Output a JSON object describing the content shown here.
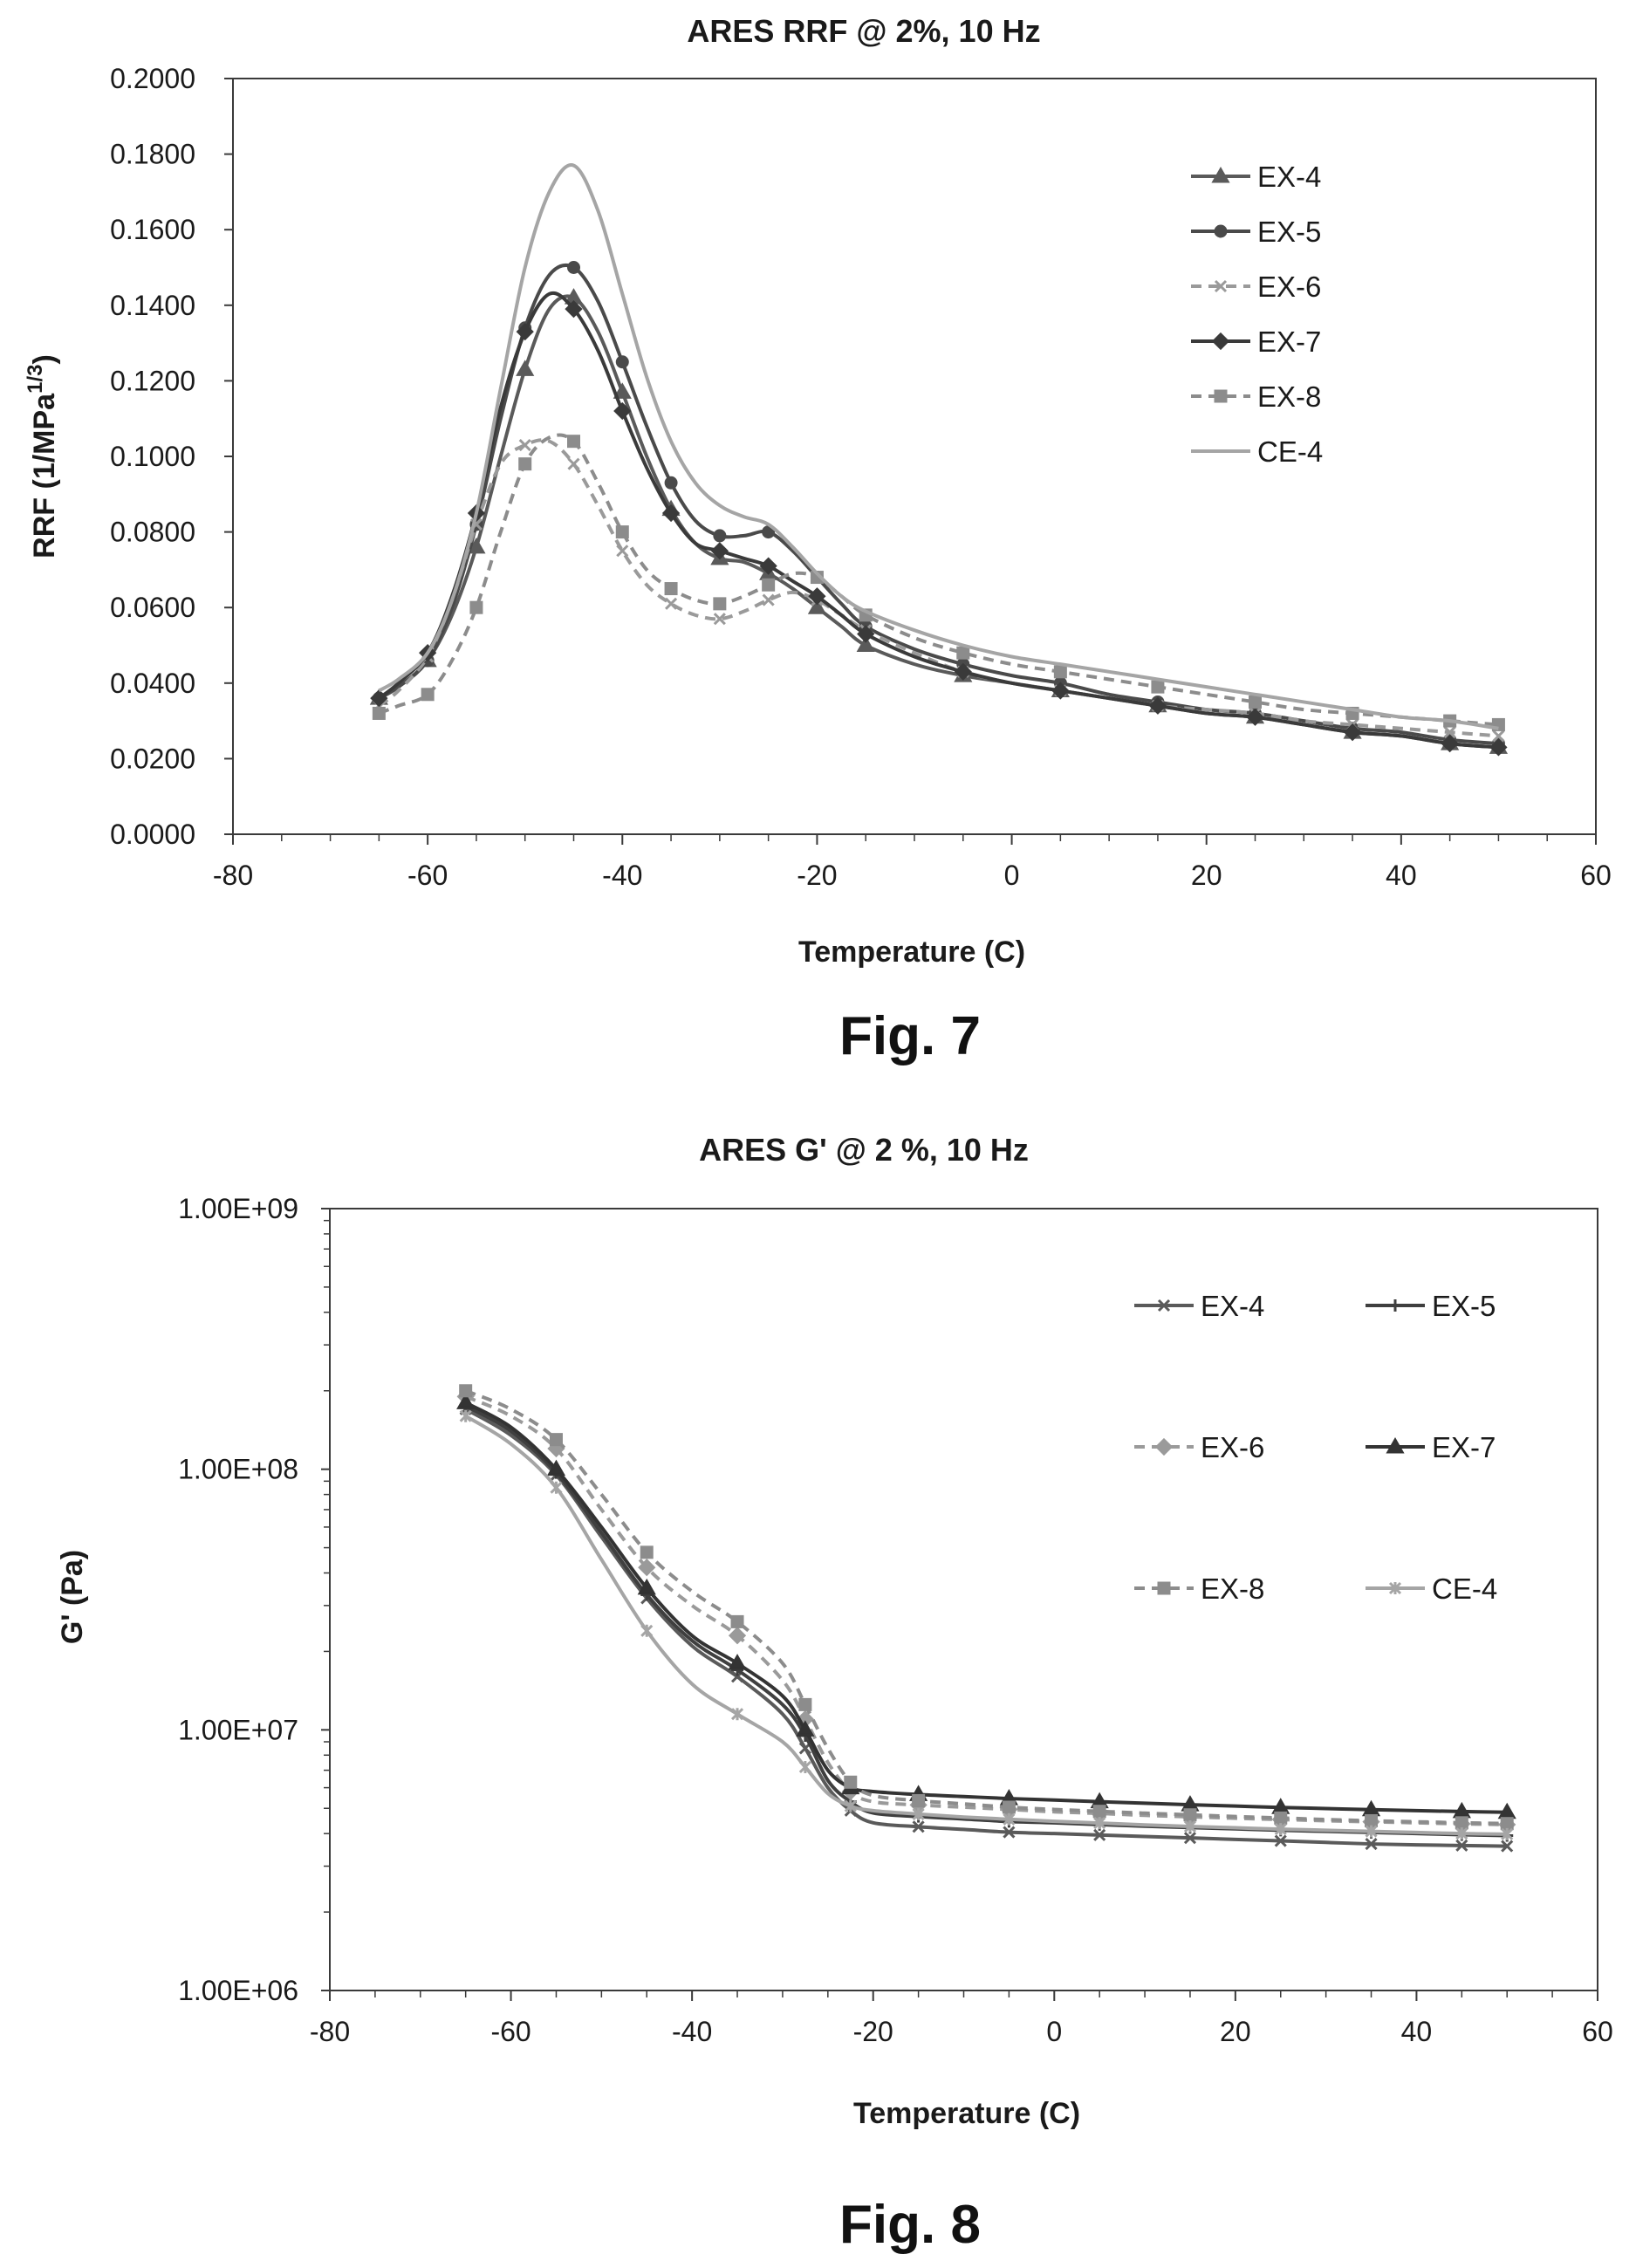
{
  "captions": [
    "Fig. 7",
    "Fig. 8"
  ],
  "chart_data": [
    {
      "type": "line",
      "title": "ARES RRF @ 2%, 10 Hz",
      "xlabel": "Temperature (C)",
      "ylabel": "RRF (1/MPa1/3)",
      "ylabel_main": "RRF (1/MPa",
      "ylabel_sup": "1/3",
      "ylabel_end": ")",
      "xlim": [
        -80,
        60
      ],
      "ylim": [
        0,
        0.2
      ],
      "xticks": [
        -80,
        -60,
        -40,
        -20,
        0,
        20,
        40,
        60
      ],
      "xtick_labels": [
        "-80",
        "-60",
        "-40",
        "-20",
        "0",
        "20",
        "40",
        "60"
      ],
      "yticks": [
        0,
        0.02,
        0.04,
        0.06,
        0.08,
        0.1,
        0.12,
        0.14,
        0.16,
        0.18,
        0.2
      ],
      "ytick_labels": [
        "0.0000",
        "0.0200",
        "0.0400",
        "0.0600",
        "0.0800",
        "0.1000",
        "0.1200",
        "0.1400",
        "0.1600",
        "0.1800",
        "0.2000"
      ],
      "x": [
        -65,
        -63,
        -60,
        -57.5,
        -55,
        -52.5,
        -50,
        -47.5,
        -45,
        -42.5,
        -40,
        -37.5,
        -35,
        -32.5,
        -30,
        -27.5,
        -25,
        -22.5,
        -20,
        -17.5,
        -15,
        -10,
        -5,
        0,
        5,
        10,
        15,
        20,
        25,
        30,
        35,
        40,
        45,
        50
      ],
      "series": [
        {
          "name": "EX-4",
          "color": "#5a5a5a",
          "dash": "",
          "marker": "triangle",
          "values": [
            0.036,
            0.039,
            0.046,
            0.058,
            0.076,
            0.1,
            0.123,
            0.139,
            0.142,
            0.133,
            0.117,
            0.1,
            0.086,
            0.077,
            0.073,
            0.072,
            0.069,
            0.065,
            0.06,
            0.055,
            0.05,
            0.045,
            0.042,
            0.04,
            0.038,
            0.036,
            0.034,
            0.032,
            0.031,
            0.029,
            0.027,
            0.026,
            0.024,
            0.023
          ]
        },
        {
          "name": "EX-5",
          "color": "#4a4a4a",
          "dash": "",
          "marker": "circle",
          "values": [
            0.036,
            0.039,
            0.046,
            0.06,
            0.082,
            0.11,
            0.134,
            0.148,
            0.15,
            0.141,
            0.125,
            0.108,
            0.093,
            0.083,
            0.079,
            0.079,
            0.08,
            0.075,
            0.068,
            0.061,
            0.055,
            0.049,
            0.045,
            0.042,
            0.04,
            0.037,
            0.035,
            0.033,
            0.032,
            0.03,
            0.028,
            0.027,
            0.025,
            0.024
          ]
        },
        {
          "name": "EX-6",
          "color": "#9a9a9a",
          "dash": "12,8",
          "marker": "x",
          "values": [
            0.034,
            0.038,
            0.047,
            0.062,
            0.082,
            0.098,
            0.103,
            0.104,
            0.098,
            0.087,
            0.075,
            0.066,
            0.061,
            0.058,
            0.057,
            0.059,
            0.062,
            0.064,
            0.062,
            0.058,
            0.054,
            0.048,
            0.043,
            0.04,
            0.038,
            0.036,
            0.034,
            0.033,
            0.032,
            0.03,
            0.029,
            0.028,
            0.027,
            0.026
          ]
        },
        {
          "name": "EX-7",
          "color": "#3a3a3a",
          "dash": "",
          "marker": "diamond",
          "values": [
            0.036,
            0.04,
            0.048,
            0.063,
            0.085,
            0.113,
            0.133,
            0.143,
            0.139,
            0.128,
            0.112,
            0.097,
            0.085,
            0.077,
            0.075,
            0.073,
            0.071,
            0.067,
            0.063,
            0.058,
            0.053,
            0.047,
            0.043,
            0.04,
            0.038,
            0.036,
            0.034,
            0.032,
            0.031,
            0.029,
            0.027,
            0.026,
            0.024,
            0.023
          ]
        },
        {
          "name": "EX-8",
          "color": "#8c8c8c",
          "dash": "12,8",
          "marker": "square",
          "values": [
            0.032,
            0.034,
            0.037,
            0.046,
            0.06,
            0.08,
            0.098,
            0.105,
            0.104,
            0.093,
            0.08,
            0.07,
            0.065,
            0.062,
            0.061,
            0.063,
            0.066,
            0.069,
            0.068,
            0.063,
            0.058,
            0.052,
            0.048,
            0.045,
            0.043,
            0.041,
            0.039,
            0.037,
            0.035,
            0.033,
            0.032,
            0.031,
            0.03,
            0.029
          ]
        },
        {
          "name": "CE-4",
          "color": "#a5a5a5",
          "dash": "",
          "marker": "none",
          "values": [
            0.038,
            0.041,
            0.048,
            0.062,
            0.085,
            0.118,
            0.15,
            0.17,
            0.177,
            0.165,
            0.143,
            0.121,
            0.104,
            0.093,
            0.087,
            0.084,
            0.082,
            0.076,
            0.069,
            0.063,
            0.059,
            0.054,
            0.05,
            0.047,
            0.045,
            0.043,
            0.041,
            0.039,
            0.037,
            0.035,
            0.033,
            0.031,
            0.03,
            0.028
          ]
        }
      ],
      "legend_position": "top-right",
      "grid": false
    },
    {
      "type": "line",
      "title": "ARES G' @ 2 %, 10 Hz",
      "xlabel": "Temperature (C)",
      "ylabel": "G' (Pa)",
      "yscale": "log",
      "xlim": [
        -80,
        60
      ],
      "ylim": [
        1000000,
        1000000000
      ],
      "xticks": [
        -80,
        -60,
        -40,
        -20,
        0,
        20,
        40,
        60
      ],
      "xtick_labels": [
        "-80",
        "-60",
        "-40",
        "-20",
        "0",
        "20",
        "40",
        "60"
      ],
      "yticks": [
        1000000,
        10000000,
        100000000,
        1000000000
      ],
      "ytick_labels": [
        "1.00E+06",
        "1.00E+07",
        "1.00E+08",
        "1.00E+09"
      ],
      "x": [
        -65,
        -60,
        -55,
        -50,
        -45,
        -40,
        -35,
        -30,
        -27.5,
        -25,
        -22.5,
        -20,
        -15,
        -10,
        -5,
        0,
        5,
        10,
        15,
        20,
        25,
        30,
        35,
        40,
        45,
        50
      ],
      "series": [
        {
          "name": "EX-4",
          "color": "#5a5a5a",
          "dash": "",
          "marker": "x",
          "values": [
            170000000,
            135000000,
            95000000,
            55000000,
            32000000,
            21000000,
            16000000,
            11500000,
            8500000,
            6000000,
            4900000,
            4400000,
            4250000,
            4150000,
            4050000,
            4000000,
            3950000,
            3900000,
            3850000,
            3800000,
            3750000,
            3700000,
            3650000,
            3620000,
            3600000,
            3580000
          ]
        },
        {
          "name": "EX-5",
          "color": "#3f3f3f",
          "dash": "",
          "marker": "plus",
          "values": [
            175000000,
            140000000,
            97000000,
            57000000,
            33000000,
            22000000,
            17000000,
            12500000,
            9500000,
            6400000,
            5300000,
            4800000,
            4650000,
            4550000,
            4450000,
            4400000,
            4330000,
            4270000,
            4220000,
            4170000,
            4120000,
            4080000,
            4040000,
            4000000,
            3960000,
            3930000
          ]
        },
        {
          "name": "EX-6",
          "color": "#9a9a9a",
          "dash": "12,8",
          "marker": "diamond",
          "values": [
            190000000,
            160000000,
            120000000,
            70000000,
            42000000,
            30000000,
            23000000,
            15500000,
            11000000,
            7500000,
            5800000,
            5300000,
            5150000,
            5050000,
            4950000,
            4850000,
            4780000,
            4700000,
            4640000,
            4580000,
            4530000,
            4480000,
            4440000,
            4400000,
            4360000,
            4330000
          ]
        },
        {
          "name": "EX-7",
          "color": "#333333",
          "dash": "",
          "marker": "triangle",
          "values": [
            180000000,
            145000000,
            100000000,
            60000000,
            35000000,
            23000000,
            18000000,
            13500000,
            10000000,
            7000000,
            6000000,
            5800000,
            5650000,
            5550000,
            5450000,
            5380000,
            5300000,
            5230000,
            5160000,
            5100000,
            5040000,
            4990000,
            4940000,
            4900000,
            4860000,
            4830000
          ]
        },
        {
          "name": "EX-8",
          "color": "#8c8c8c",
          "dash": "12,8",
          "marker": "square",
          "values": [
            200000000,
            170000000,
            130000000,
            80000000,
            48000000,
            34000000,
            26000000,
            18000000,
            12500000,
            8500000,
            6300000,
            5600000,
            5350000,
            5200000,
            5050000,
            4950000,
            4870000,
            4790000,
            4720000,
            4650000,
            4590000,
            4530000,
            4480000,
            4440000,
            4400000,
            4370000
          ]
        },
        {
          "name": "CE-4",
          "color": "#a5a5a5",
          "dash": "",
          "marker": "star",
          "values": [
            160000000,
            125000000,
            85000000,
            45000000,
            24000000,
            15000000,
            11500000,
            9000000,
            7200000,
            5700000,
            5100000,
            4900000,
            4750000,
            4630000,
            4540000,
            4460000,
            4390000,
            4320000,
            4260000,
            4210000,
            4160000,
            4120000,
            4080000,
            4040000,
            4000000,
            3980000
          ]
        }
      ],
      "legend_position": "top-right",
      "grid": false
    }
  ]
}
